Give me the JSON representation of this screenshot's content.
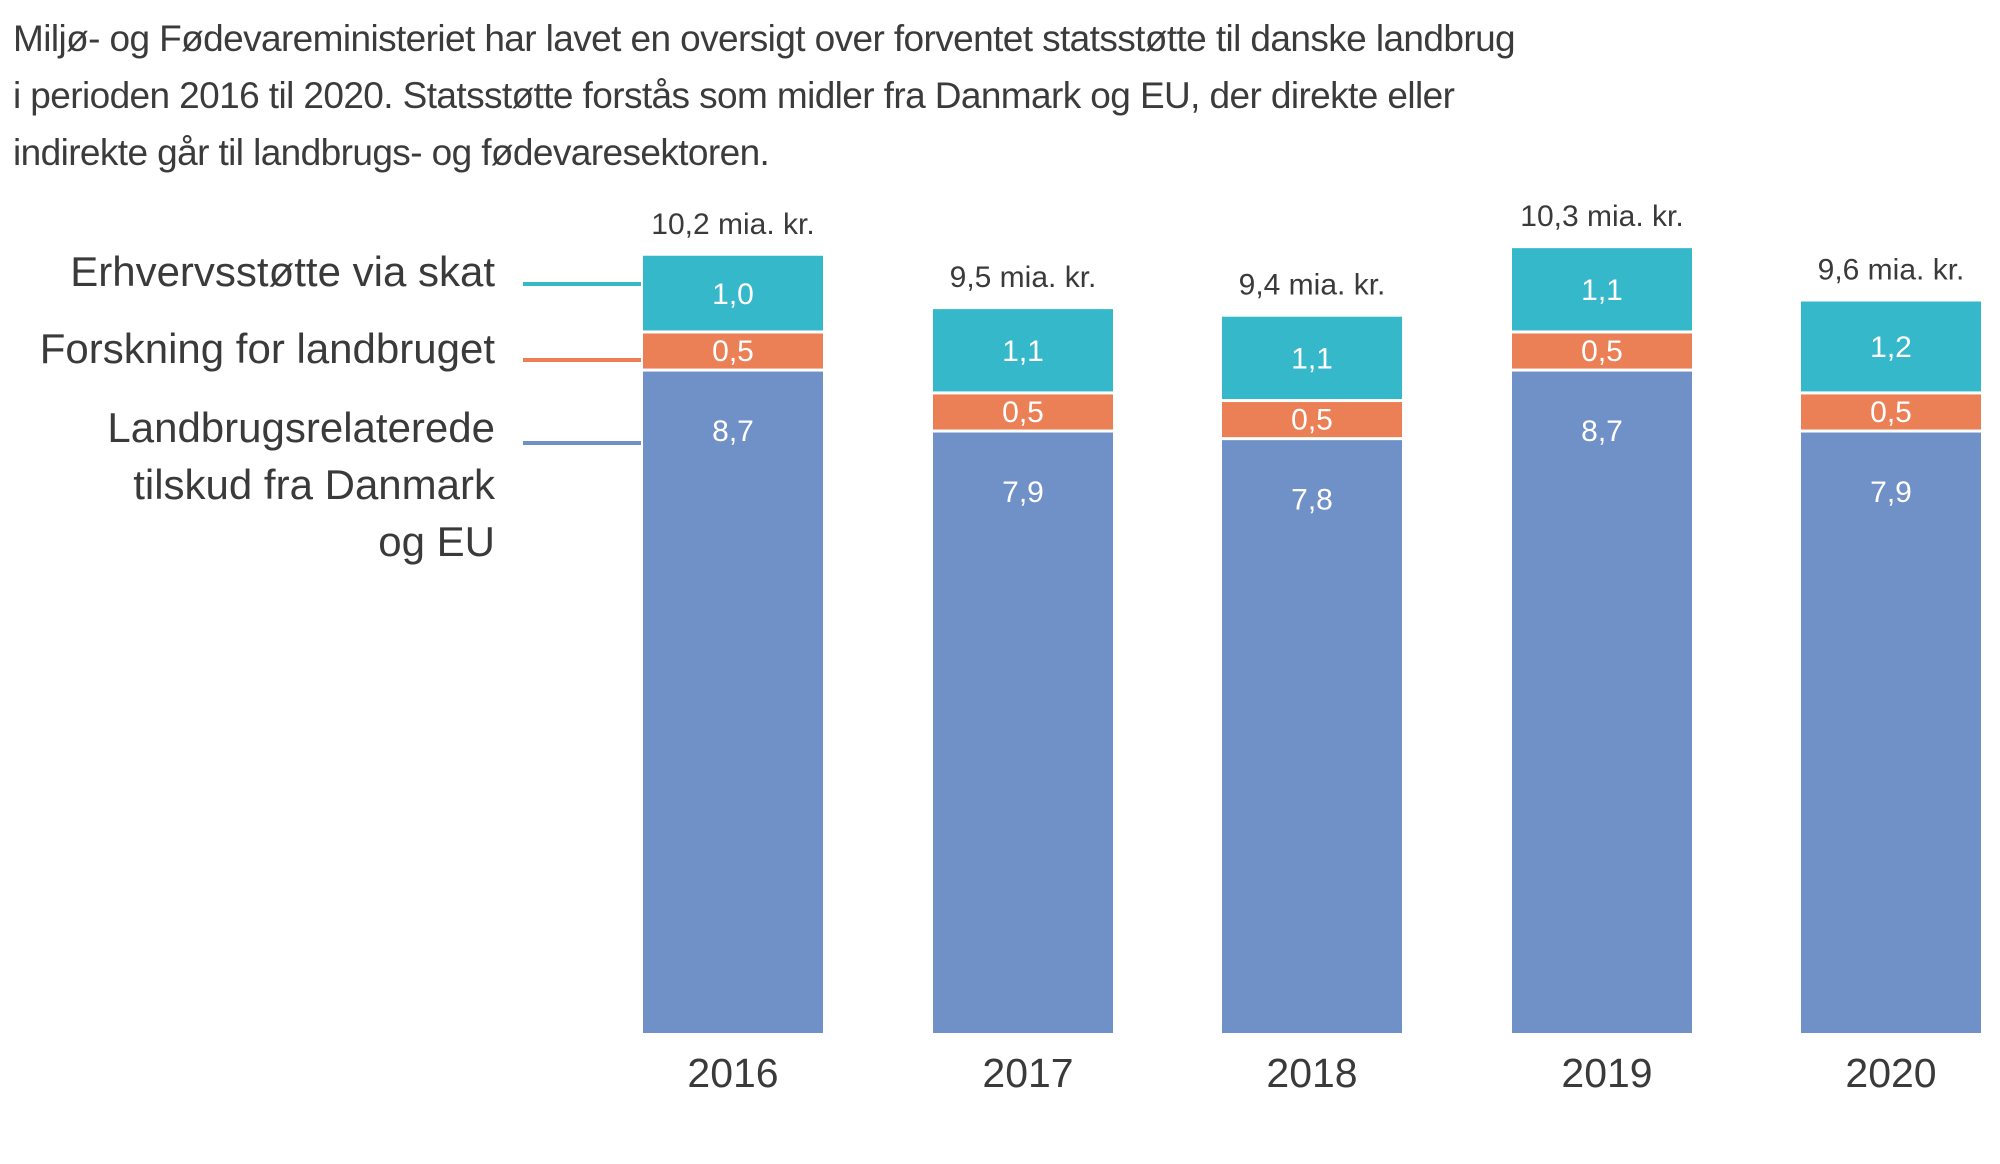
{
  "intro": {
    "line1": "Miljø- og Fødevareministeriet har lavet en oversigt over forventet statsstøtte til danske landbrug",
    "line2": "i perioden 2016 til 2020. Statsstøtte forstås som midler fra Danmark og EU, der direkte eller",
    "line3": "indirekte går til landbrugs- og fødevaresektoren."
  },
  "chart_data": {
    "type": "bar",
    "stacked": true,
    "title": "",
    "xlabel": "",
    "ylabel": "",
    "ylim": [
      0,
      10.3
    ],
    "categories": [
      "2016",
      "2017",
      "2018",
      "2019",
      "2020"
    ],
    "series": [
      {
        "name_lines": [
          "Landbrugsrelaterede",
          "tilskud fra Danmark",
          "og EU"
        ],
        "color": "#7090C8",
        "values": [
          8.7,
          7.9,
          7.8,
          8.7,
          7.9
        ],
        "value_labels": [
          "8,7",
          "7,9",
          "7,8",
          "8,7",
          "7,9"
        ]
      },
      {
        "name_lines": [
          "Forskning for landbruget"
        ],
        "color": "#EB7F55",
        "values": [
          0.5,
          0.5,
          0.5,
          0.5,
          0.5
        ],
        "value_labels": [
          "0,5",
          "0,5",
          "0,5",
          "0,5",
          "0,5"
        ]
      },
      {
        "name_lines": [
          "Erhvervsstøtte via skat"
        ],
        "color": "#36B8CB",
        "values": [
          1.0,
          1.1,
          1.1,
          1.1,
          1.2
        ],
        "value_labels": [
          "1,0",
          "1,1",
          "1,1",
          "1,1",
          "1,2"
        ]
      }
    ],
    "totals": [
      10.2,
      9.5,
      9.4,
      10.3,
      9.6
    ],
    "total_labels": [
      "10,2 mia. kr.",
      "9,5 mia. kr.",
      "9,4 mia. kr.",
      "10,3 mia. kr.",
      "9,6 mia. kr."
    ]
  }
}
